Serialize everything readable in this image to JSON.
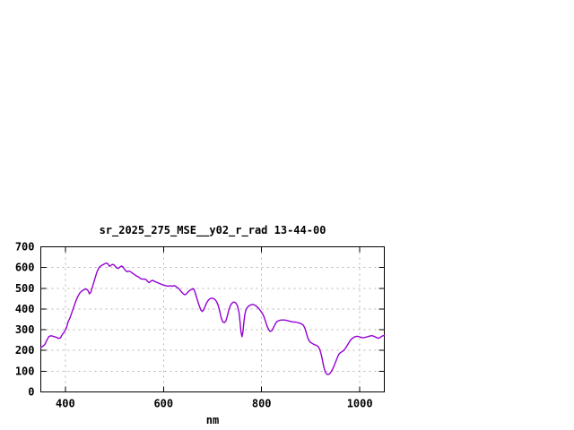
{
  "chart_data": {
    "type": "line",
    "title": "sr_2025_275_MSE__y02_r_rad 13-44-00",
    "xlabel": "nm",
    "ylabel": "",
    "xlim": [
      350,
      1050
    ],
    "ylim": [
      0,
      700
    ],
    "x_ticks": [
      400,
      600,
      800,
      1000
    ],
    "y_ticks": [
      0,
      100,
      200,
      300,
      400,
      500,
      600,
      700
    ],
    "grid": true,
    "legend": "none",
    "colors": {
      "line": "#9400D3",
      "grid": "#b4b4b4",
      "axis": "#000000",
      "background": "#ffffff",
      "text": "#000000"
    },
    "series": [
      {
        "name": "sr_2025_275_MSE__y02_r_rad 13-44-00",
        "x": [
          350,
          354,
          358,
          362,
          366,
          370,
          374,
          378,
          382,
          386,
          390,
          394,
          398,
          402,
          406,
          410,
          414,
          418,
          422,
          426,
          430,
          434,
          438,
          442,
          446,
          449,
          452,
          456,
          460,
          464,
          468,
          471,
          474,
          477,
          480,
          484,
          487,
          490,
          493,
          496,
          499,
          502,
          505,
          508,
          511,
          514,
          517,
          520,
          523,
          526,
          529,
          532,
          535,
          538,
          541,
          544,
          547,
          550,
          553,
          556,
          559,
          562,
          565,
          568,
          571,
          574,
          577,
          580,
          583,
          586,
          589,
          592,
          595,
          598,
          601,
          604,
          607,
          610,
          613,
          616,
          619,
          622,
          625,
          628,
          631,
          634,
          637,
          640,
          643,
          646,
          649,
          652,
          655,
          658,
          661,
          664,
          667,
          670,
          673,
          676,
          679,
          682,
          685,
          688,
          691,
          694,
          697,
          700,
          703,
          706,
          709,
          712,
          715,
          718,
          721,
          724,
          727,
          730,
          733,
          736,
          739,
          742,
          745,
          748,
          751,
          754,
          756,
          758,
          760,
          762,
          764,
          766,
          768,
          771,
          774,
          778,
          782,
          786,
          790,
          794,
          798,
          802,
          805,
          808,
          811,
          814,
          817,
          820,
          823,
          826,
          829,
          832,
          835,
          838,
          841,
          845,
          849,
          853,
          857,
          861,
          865,
          869,
          873,
          877,
          881,
          885,
          888,
          891,
          894,
          897,
          900,
          903,
          906,
          909,
          912,
          915,
          918,
          921,
          924,
          927,
          930,
          933,
          936,
          939,
          942,
          945,
          948,
          951,
          954,
          957,
          960,
          963,
          966,
          969,
          972,
          975,
          978,
          981,
          984,
          987,
          990,
          993,
          996,
          999,
          1002,
          1005,
          1008,
          1011,
          1014,
          1017,
          1020,
          1023,
          1026,
          1029,
          1032,
          1035,
          1038,
          1041,
          1044,
          1047,
          1050
        ],
        "y": [
          215,
          220,
          228,
          248,
          266,
          271,
          269,
          266,
          263,
          258,
          261,
          278,
          290,
          308,
          340,
          360,
          388,
          415,
          442,
          463,
          479,
          488,
          493,
          497,
          490,
          473,
          481,
          513,
          545,
          576,
          597,
          606,
          610,
          614,
          618,
          622,
          617,
          606,
          610,
          615,
          613,
          605,
          597,
          596,
          602,
          607,
          604,
          594,
          584,
          580,
          583,
          581,
          576,
          571,
          566,
          561,
          557,
          553,
          547,
          544,
          545,
          544,
          541,
          532,
          527,
          534,
          539,
          536,
          532,
          529,
          526,
          523,
          520,
          517,
          515,
          513,
          511,
          510,
          512,
          511,
          510,
          513,
          509,
          504,
          499,
          490,
          482,
          474,
          469,
          471,
          479,
          487,
          492,
          495,
          498,
          484,
          460,
          437,
          415,
          396,
          388,
          396,
          414,
          430,
          441,
          448,
          452,
          452,
          449,
          443,
          432,
          413,
          385,
          355,
          338,
          334,
          342,
          365,
          395,
          415,
          426,
          433,
          433,
          427,
          414,
          383,
          340,
          290,
          266,
          291,
          340,
          376,
          396,
          408,
          415,
          420,
          422,
          419,
          412,
          403,
          391,
          377,
          362,
          340,
          318,
          302,
          292,
          294,
          305,
          319,
          333,
          341,
          344,
          346,
          347,
          347,
          346,
          344,
          341,
          339,
          337,
          337,
          335,
          332,
          329,
          322,
          308,
          285,
          262,
          246,
          238,
          234,
          230,
          227,
          224,
          219,
          208,
          185,
          152,
          118,
          95,
          85,
          84,
          89,
          99,
          112,
          128,
          146,
          164,
          180,
          189,
          193,
          197,
          204,
          215,
          227,
          238,
          249,
          257,
          262,
          266,
          268,
          268,
          266,
          264,
          262,
          262,
          263,
          265,
          267,
          269,
          271,
          271,
          268,
          265,
          261,
          259,
          262,
          267,
          271,
          272
        ]
      }
    ]
  }
}
